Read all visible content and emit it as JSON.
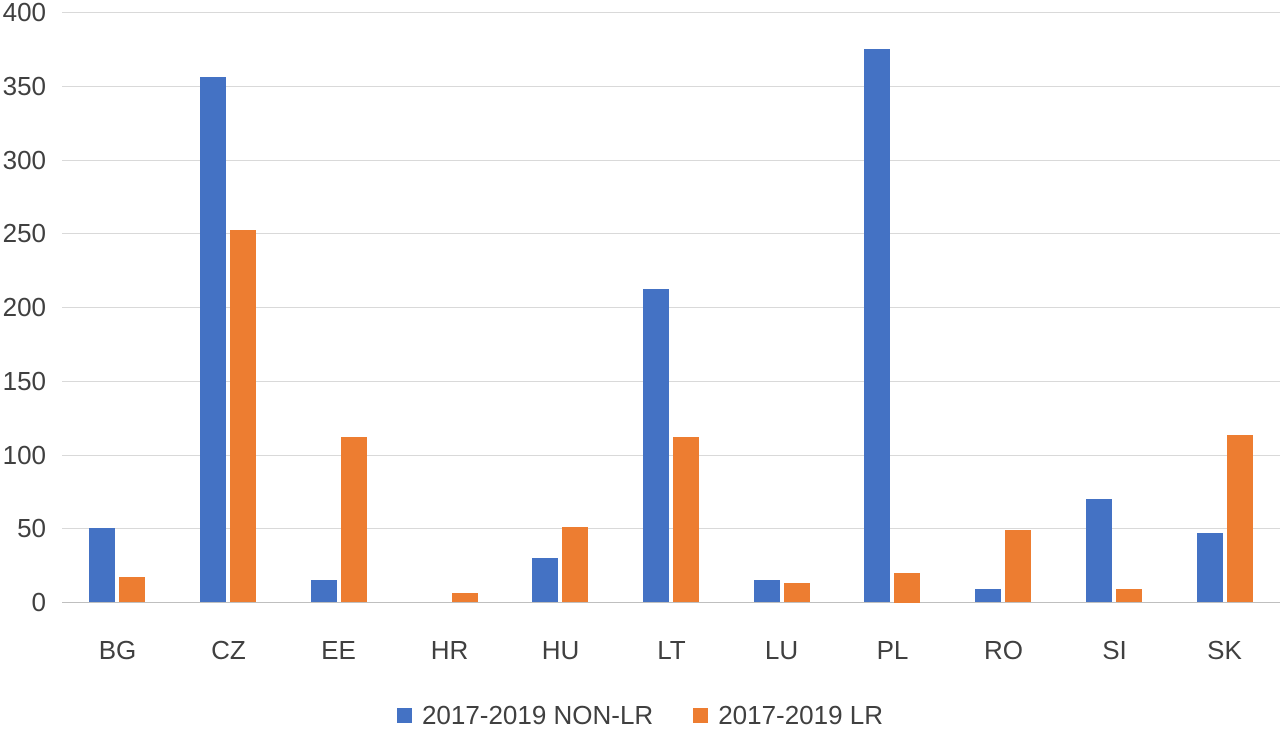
{
  "chart_data": {
    "type": "bar",
    "title": "",
    "xlabel": "",
    "ylabel": "",
    "categories": [
      "BG",
      "CZ",
      "EE",
      "HR",
      "HU",
      "LT",
      "LU",
      "PL",
      "RO",
      "SI",
      "SK"
    ],
    "series": [
      {
        "name": "2017-2019 NON-LR",
        "color": "#4472C4",
        "values": [
          50,
          356,
          15,
          0,
          30,
          212,
          15,
          375,
          9,
          70,
          47
        ]
      },
      {
        "name": "2017-2019 LR",
        "color": "#ED7D31",
        "values": [
          17,
          252,
          112,
          6,
          51,
          112,
          13,
          20,
          49,
          9,
          113
        ]
      }
    ],
    "ylim": [
      0,
      400
    ],
    "ytick_step": 50,
    "ytick_labels": [
      "0",
      "50",
      "100",
      "150",
      "200",
      "250",
      "300",
      "350",
      "400"
    ],
    "grid": true,
    "legend_position": "bottom"
  },
  "colors": {
    "gridline": "#d9d9d9",
    "axis_line": "#bfbfbf",
    "label_text": "#404040",
    "background": "#ffffff"
  },
  "layout_values": {
    "note": "horizontal gridlines at every 50 units; grouped vertical bars; legend centered below chart"
  }
}
